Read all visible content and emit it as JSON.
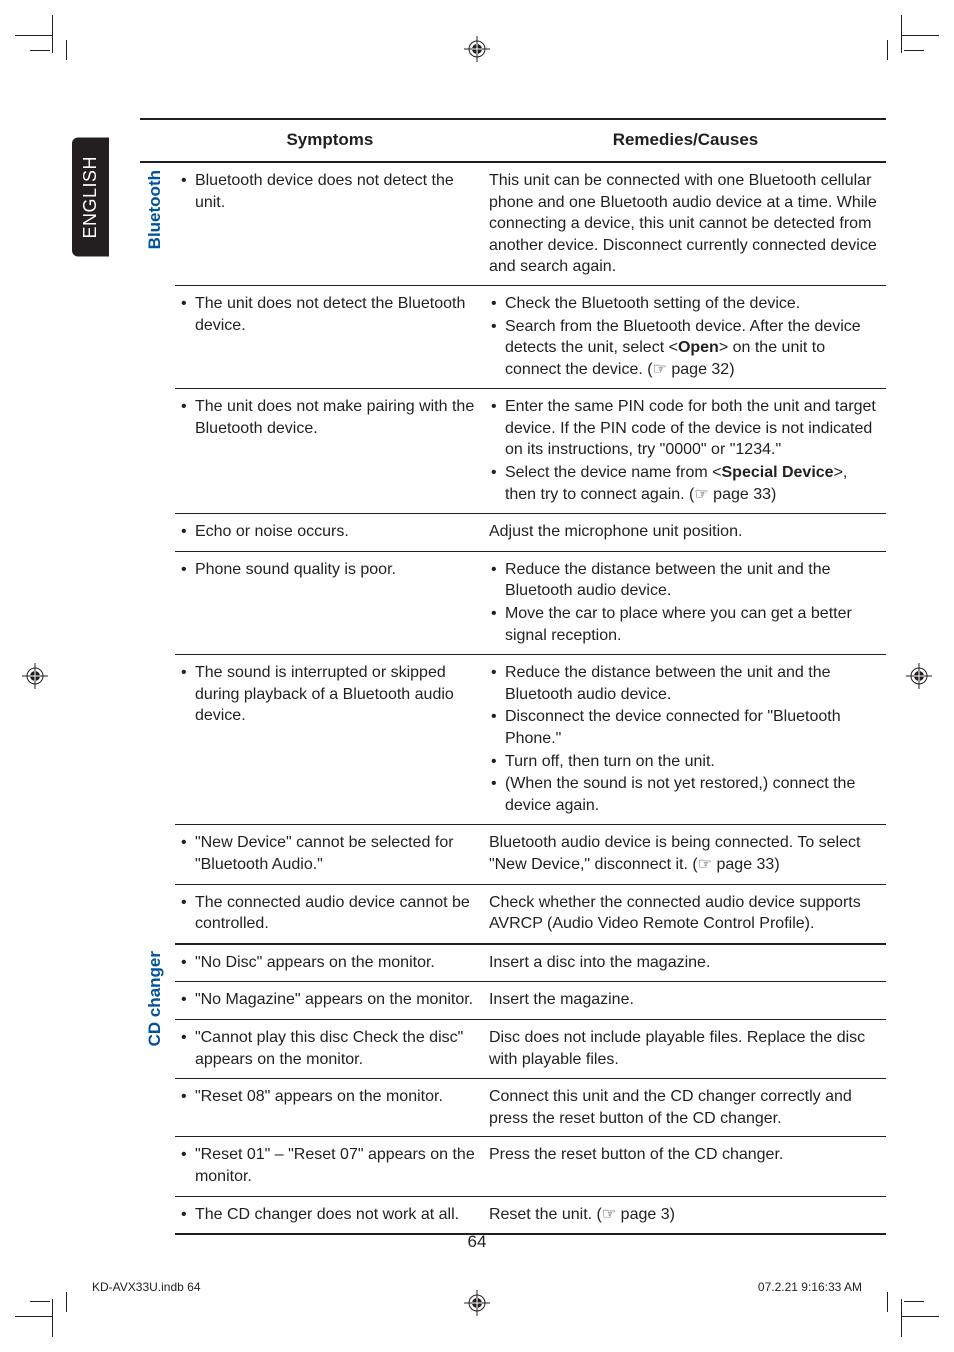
{
  "lang_tab": "ENGLISH",
  "headers": {
    "symptoms": "Symptoms",
    "remedies": "Remedies/Causes"
  },
  "groups": [
    {
      "category": "Bluetooth",
      "rows": [
        {
          "sym": [
            "Bluetooth device does not detect the unit."
          ],
          "rem_plain": "This unit can be connected with one Bluetooth cellular phone and one Bluetooth audio device at a time. While connecting a device, this unit cannot be detected from another device. Disconnect currently connected device and search again."
        },
        {
          "sym": [
            "The unit does not detect the Bluetooth device."
          ],
          "rem": [
            "Check the Bluetooth setting of the device.",
            "Search from the Bluetooth device. After the device detects the unit, select <<b>Open</b>> on the unit to connect the device. (☞ page 32)"
          ]
        },
        {
          "sym": [
            "The unit does not make pairing with the Bluetooth device."
          ],
          "rem": [
            "Enter the same PIN code for both the unit and target device. If the PIN code of the device is not indicated on its instructions, try \"0000\" or \"1234.\"",
            "Select the device name from <<b>Special Device</b>>, then try to connect again. (☞ page 33)"
          ]
        },
        {
          "sym": [
            "Echo or noise occurs."
          ],
          "rem_plain": "Adjust the microphone unit position."
        },
        {
          "sym": [
            "Phone sound quality is poor."
          ],
          "rem": [
            "Reduce the distance between the unit and the Bluetooth audio device.",
            "Move the car to place where you can get a better signal reception."
          ]
        },
        {
          "sym": [
            "The sound is interrupted or skipped during playback of a Bluetooth audio device."
          ],
          "rem": [
            "Reduce the distance between the unit and the Bluetooth audio device.",
            "Disconnect the device connected for \"Bluetooth Phone.\"",
            "Turn off, then turn on the unit.",
            "(When the sound is not yet restored,) connect the device again."
          ]
        },
        {
          "sym": [
            "\"New Device\" cannot be selected for \"Bluetooth Audio.\""
          ],
          "rem_plain": "Bluetooth audio device is being connected. To select \"New Device,\" disconnect it. (☞ page 33)"
        },
        {
          "sym": [
            "The connected audio device cannot be controlled."
          ],
          "rem_plain": "Check whether the connected audio device supports AVRCP (Audio Video Remote Control Profile)."
        }
      ]
    },
    {
      "category": "CD changer",
      "rows": [
        {
          "sym": [
            "\"No Disc\" appears on the monitor."
          ],
          "rem_plain": "Insert a disc into the magazine."
        },
        {
          "sym": [
            "\"No Magazine\" appears on the monitor."
          ],
          "rem_plain": "Insert the magazine."
        },
        {
          "sym": [
            "\"Cannot play this disc Check the disc\" appears on the monitor."
          ],
          "rem_plain": "Disc does not include playable files. Replace the disc with playable files."
        },
        {
          "sym": [
            "\"Reset 08\" appears on the monitor."
          ],
          "rem_plain": "Connect this unit and the CD changer correctly and press the reset button of the CD changer."
        },
        {
          "sym": [
            "\"Reset 01\" – \"Reset 07\" appears on the monitor."
          ],
          "rem_plain": "Press the reset button of the CD changer."
        },
        {
          "sym": [
            "The CD changer does not work at all."
          ],
          "rem_plain": "Reset the unit. (☞ page 3)"
        }
      ]
    }
  ],
  "page_number": "64",
  "footer": {
    "left": "KD-AVX33U.indb   64",
    "right": "07.2.21   9:16:33 AM"
  }
}
